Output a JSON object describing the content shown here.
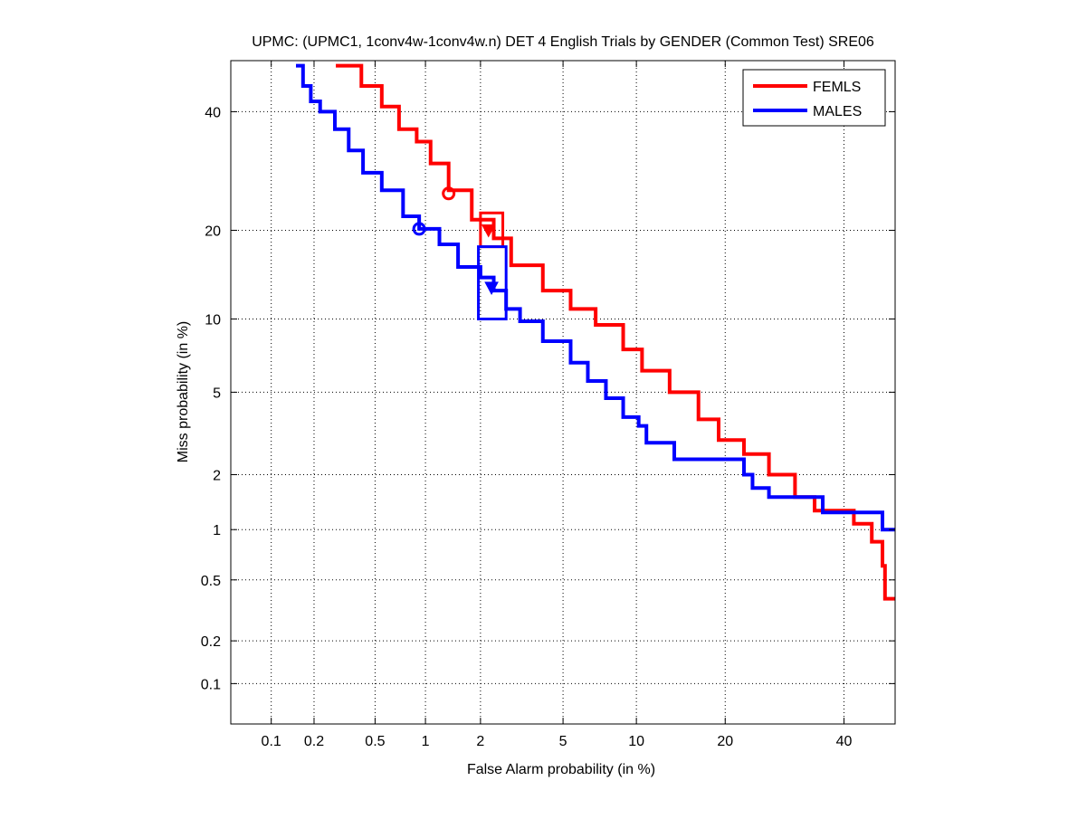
{
  "chart_data": {
    "type": "line",
    "scale": "probit (DET)",
    "title": "UPMC: (UPMC1, 1conv4w-1conv4w.n) DET 4 English Trials by GENDER (Common Test) SRE06",
    "xlabel": "False Alarm probability (in %)",
    "ylabel": "Miss probability (in %)",
    "xlim": [
      0.05,
      50
    ],
    "ylim": [
      0.05,
      50
    ],
    "grid": true,
    "legend_position": "top-right",
    "xticks": [
      0.1,
      0.2,
      0.5,
      1,
      2,
      5,
      10,
      20,
      40
    ],
    "xtick_labels": [
      "0.1",
      "0.2",
      "0.5",
      "1",
      "2",
      "5",
      "10",
      "20",
      "40"
    ],
    "yticks": [
      0.1,
      0.2,
      0.5,
      1,
      2,
      5,
      10,
      20,
      40
    ],
    "ytick_labels": [
      "0.1",
      "0.2",
      "0.5",
      "1",
      "2",
      "5",
      "10",
      "20",
      "40"
    ],
    "series": [
      {
        "name": "FEMLS",
        "color": "#ff0000",
        "x": [
          0.28,
          0.41,
          0.55,
          0.7,
          0.89,
          1.07,
          1.35,
          1.8,
          2.34,
          2.86,
          4.05,
          5.4,
          6.9,
          8.9,
          10.5,
          13.2,
          16.5,
          19.1,
          22.7,
          26.6,
          31,
          34.5,
          41.9,
          45.4,
          47.5,
          48,
          48,
          50
        ],
        "y": [
          49,
          45,
          41,
          36.7,
          34.4,
          30.5,
          26,
          21.5,
          18.9,
          15.5,
          12.7,
          10.9,
          9.5,
          7.6,
          6.2,
          5.0,
          3.76,
          2.99,
          2.55,
          2.0,
          1.52,
          1.28,
          1.08,
          0.85,
          0.61,
          0.45,
          0.38,
          0.38
        ],
        "min_dcf_point": {
          "x": 1.35,
          "y": 25.5
        },
        "act_dcf_point": {
          "x": 2.2,
          "y": 20
        },
        "confidence_box": {
          "x": [
            2.0,
            2.6
          ],
          "y": [
            17.8,
            22.5
          ]
        }
      },
      {
        "name": "MALES",
        "color": "#0000ff",
        "x": [
          0.15,
          0.168,
          0.19,
          0.22,
          0.276,
          0.34,
          0.42,
          0.55,
          0.74,
          0.92,
          1.2,
          1.52,
          2.0,
          2.34,
          2.7,
          3.16,
          4.05,
          5.4,
          6.4,
          7.6,
          8.9,
          10.2,
          10.9,
          13.7,
          20.4,
          22.7,
          24,
          26.6,
          35,
          36,
          47.5,
          47.5,
          50
        ],
        "y": [
          49,
          45,
          42,
          40,
          36.7,
          32.8,
          28.9,
          26,
          22,
          20.2,
          18.1,
          15.3,
          14.1,
          12.7,
          10.9,
          9.8,
          8.2,
          6.7,
          5.6,
          4.7,
          3.85,
          3.5,
          2.9,
          2.4,
          2.4,
          2.0,
          1.7,
          1.52,
          1.52,
          1.25,
          1.25,
          1.0,
          1.0
        ],
        "min_dcf_point": {
          "x": 0.92,
          "y": 20.2
        },
        "act_dcf_point": {
          "x": 2.28,
          "y": 13
        },
        "confidence_box": {
          "x": [
            1.95,
            2.7
          ],
          "y": [
            10.0,
            17.8
          ]
        }
      }
    ]
  }
}
